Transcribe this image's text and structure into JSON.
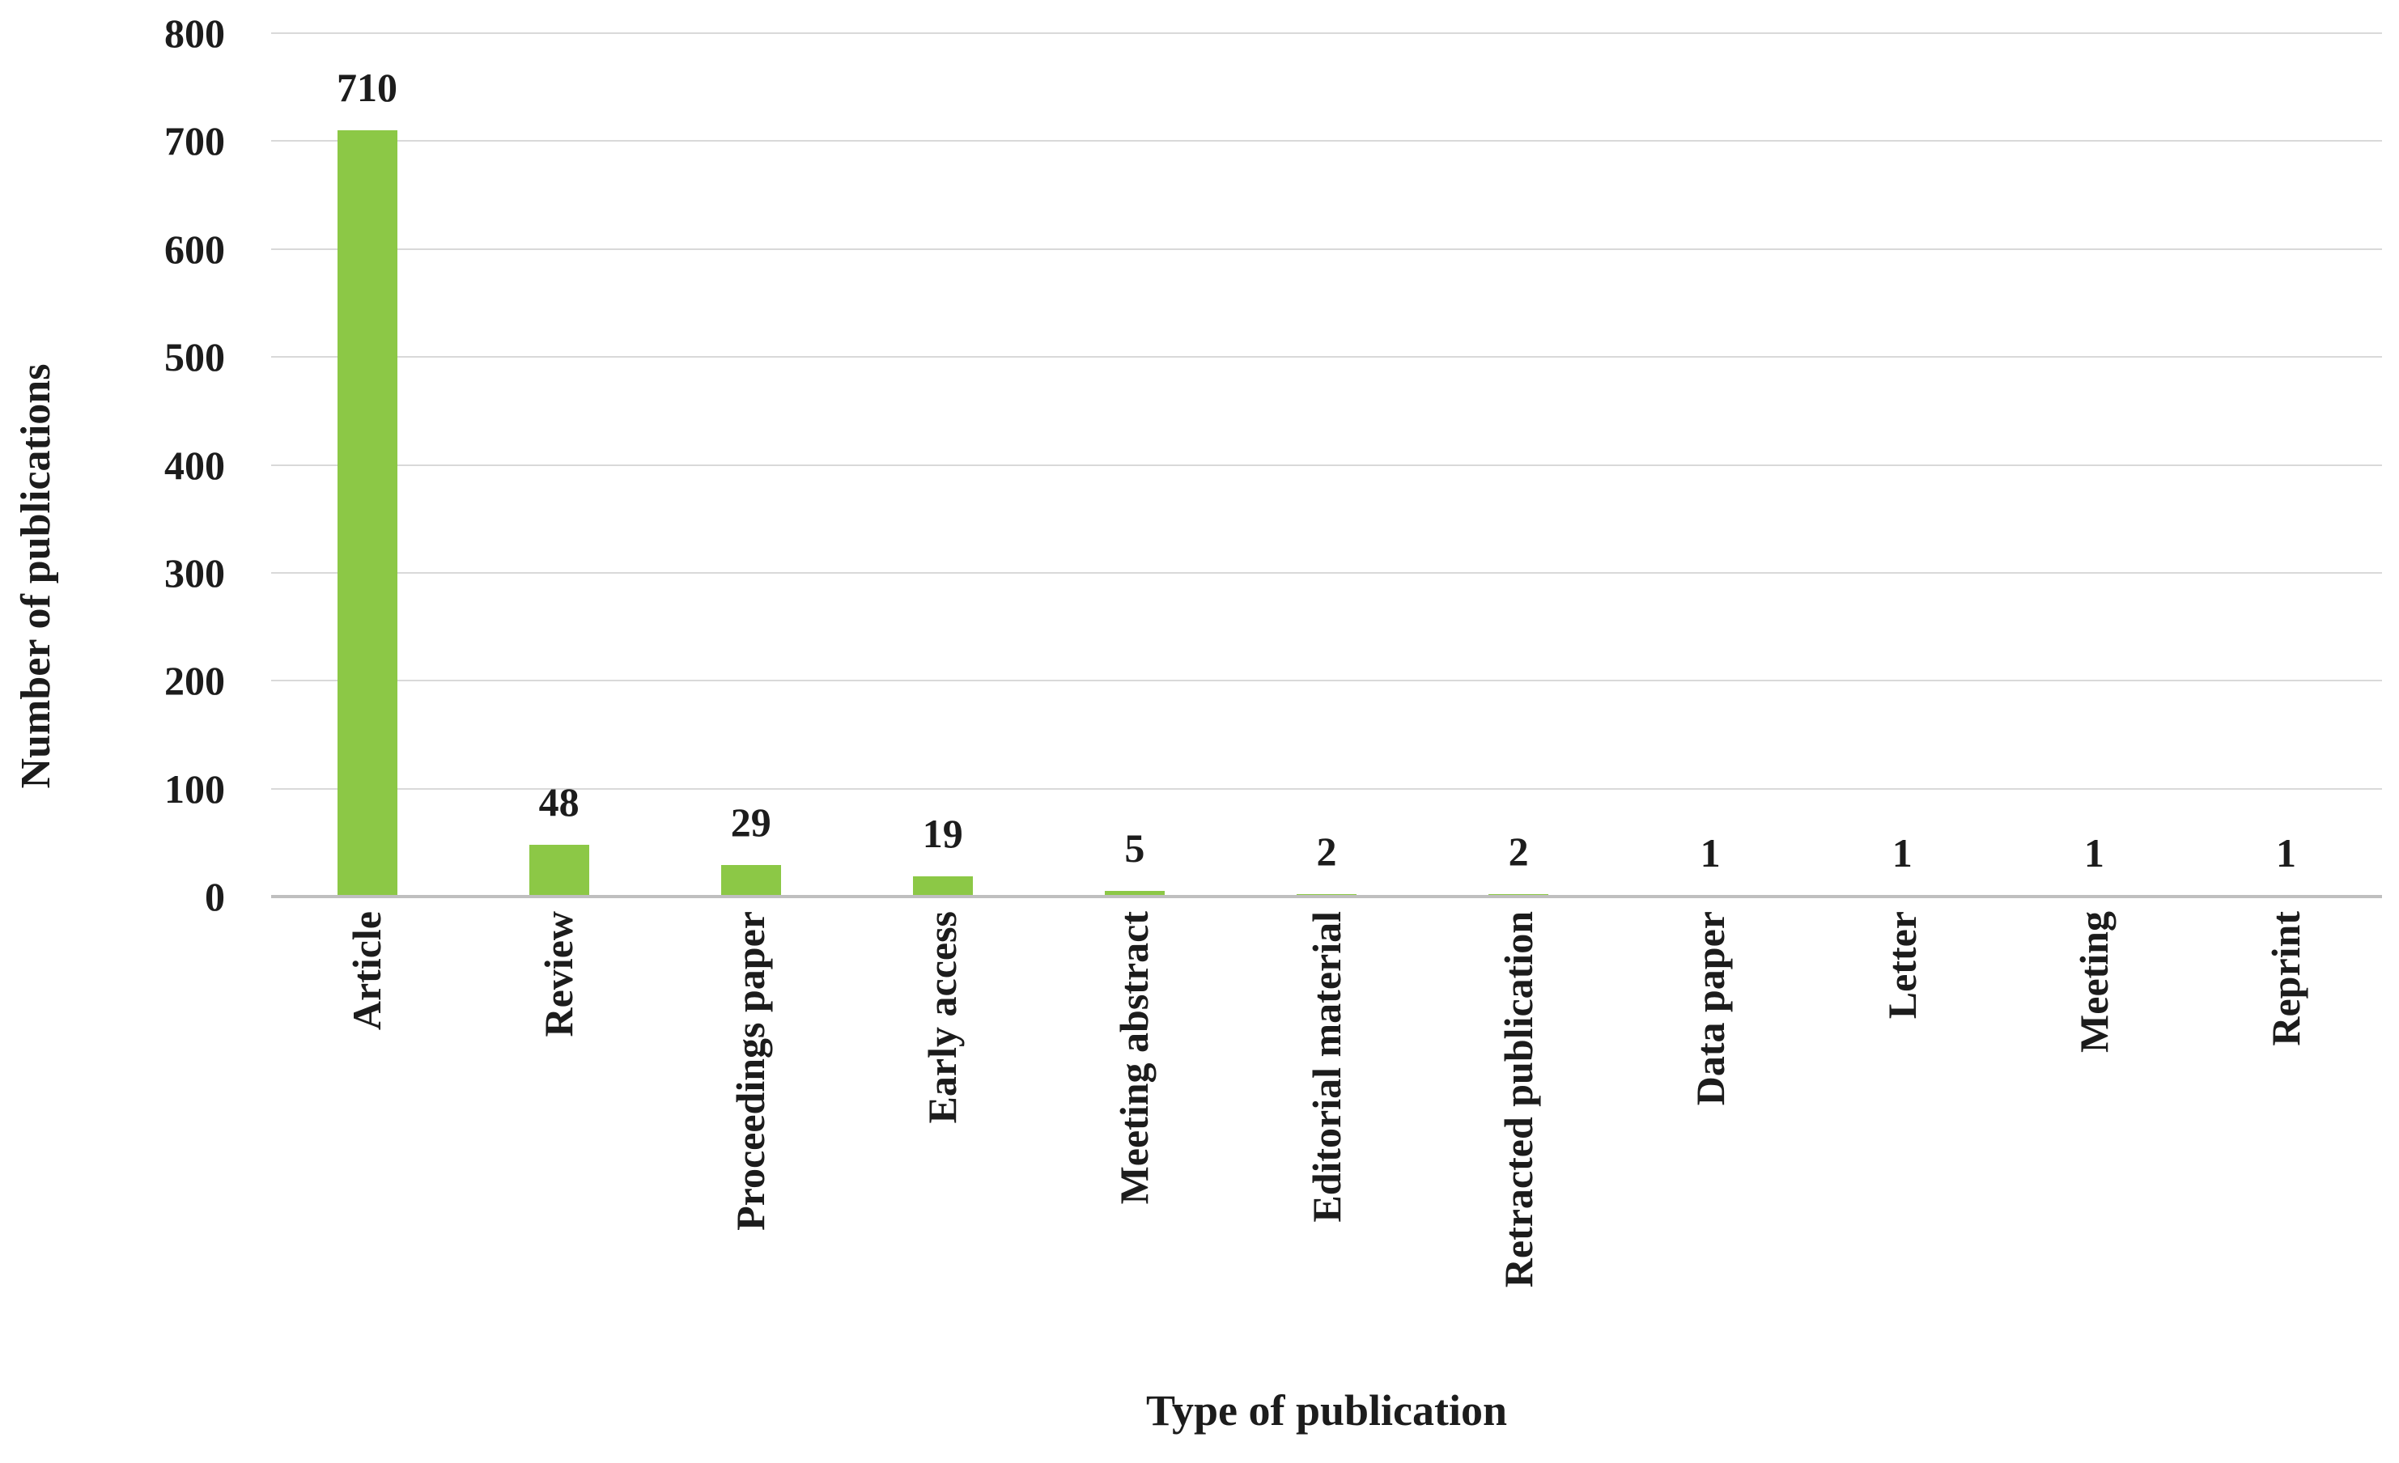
{
  "chart_data": {
    "type": "bar",
    "title": "",
    "categories": [
      "Article",
      "Review",
      "Proceedings paper",
      "Early access",
      "Meeting abstract",
      "Editorial material",
      "Retracted publication",
      "Data paper",
      "Letter",
      "Meeting",
      "Reprint"
    ],
    "values": [
      710,
      48,
      29,
      19,
      5,
      2,
      2,
      1,
      1,
      1,
      1
    ],
    "data_labels": [
      "710",
      "48",
      "29",
      "19",
      "5",
      "2",
      "2",
      "1",
      "1",
      "1",
      "1"
    ],
    "xlabel": "Type of publication",
    "ylabel": "Number of publications",
    "ylim": [
      0,
      800
    ],
    "ytick_step": 100,
    "yticks": [
      800,
      700,
      600,
      500,
      400,
      300,
      200,
      100,
      0
    ],
    "grid": true,
    "legend": false,
    "colors": {
      "bar": "#8cc846",
      "gridline": "#d9d9d9",
      "axis_line": "#bfbfbf",
      "text": "#1c1c1c",
      "background": "#ffffff"
    }
  }
}
